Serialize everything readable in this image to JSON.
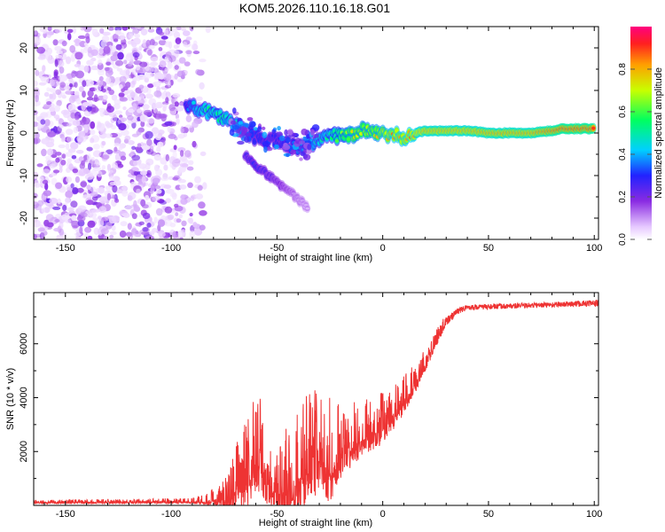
{
  "title": "KOM5.2026.110.16.18.G01",
  "chart_data": [
    {
      "type": "heatmap",
      "xlabel": "Height of straight line (km)",
      "ylabel": "Frequency (Hz)",
      "xlim": [
        -165,
        102
      ],
      "ylim": [
        -25,
        25
      ],
      "xticks": [
        -150,
        -100,
        -50,
        0,
        50,
        100
      ],
      "yticks": [
        -20,
        -10,
        0,
        10,
        20
      ],
      "xtick_labels": [
        "-150",
        "-100",
        "-50",
        "0",
        "50",
        "100"
      ],
      "ytick_labels": [
        "-20",
        "-10",
        "0",
        "10",
        "20"
      ],
      "colorbar": {
        "label": "Normalized spectral amplitude",
        "range": [
          0,
          1
        ],
        "ticks": [
          0.0,
          0.2,
          0.4,
          0.6,
          0.8
        ],
        "tick_labels": [
          "0.0",
          "0.2",
          "0.4",
          "0.6",
          "0.8"
        ]
      },
      "noise_region_x": [
        -165,
        -82
      ],
      "ridge": [
        {
          "x": -93,
          "f": 6.5,
          "a": 0.3
        },
        {
          "x": -88,
          "f": 6.0,
          "a": 0.45
        },
        {
          "x": -84,
          "f": 5.5,
          "a": 0.5
        },
        {
          "x": -80,
          "f": 4.5,
          "a": 0.5
        },
        {
          "x": -75,
          "f": 3.5,
          "a": 0.55
        },
        {
          "x": -70,
          "f": 2.0,
          "a": 0.45
        },
        {
          "x": -65,
          "f": 0.5,
          "a": 0.4
        },
        {
          "x": -60,
          "f": -1.0,
          "a": 0.3
        },
        {
          "x": -55,
          "f": -1.5,
          "a": 0.3
        },
        {
          "x": -50,
          "f": -2.0,
          "a": 0.3
        },
        {
          "x": -45,
          "f": -3.0,
          "a": 0.3
        },
        {
          "x": -40,
          "f": -3.5,
          "a": 0.35
        },
        {
          "x": -35,
          "f": -3.0,
          "a": 0.45
        },
        {
          "x": -30,
          "f": -1.5,
          "a": 0.45
        },
        {
          "x": -25,
          "f": -1.0,
          "a": 0.5
        },
        {
          "x": -20,
          "f": -0.5,
          "a": 0.6
        },
        {
          "x": -15,
          "f": -0.5,
          "a": 0.7
        },
        {
          "x": -10,
          "f": 0.5,
          "a": 0.7
        },
        {
          "x": -5,
          "f": 0.5,
          "a": 0.7
        },
        {
          "x": 0,
          "f": -0.5,
          "a": 0.75
        },
        {
          "x": 5,
          "f": -0.5,
          "a": 0.8
        },
        {
          "x": 10,
          "f": -1.0,
          "a": 0.8
        },
        {
          "x": 15,
          "f": 0.0,
          "a": 0.85
        },
        {
          "x": 20,
          "f": 0.5,
          "a": 0.9
        },
        {
          "x": 30,
          "f": 0.5,
          "a": 0.9
        },
        {
          "x": 40,
          "f": 0.5,
          "a": 0.9
        },
        {
          "x": 50,
          "f": 0.0,
          "a": 0.92
        },
        {
          "x": 60,
          "f": 0.0,
          "a": 0.92
        },
        {
          "x": 70,
          "f": 0.0,
          "a": 0.92
        },
        {
          "x": 75,
          "f": 0.3,
          "a": 0.95
        },
        {
          "x": 80,
          "f": 0.5,
          "a": 0.97
        },
        {
          "x": 85,
          "f": 1.0,
          "a": 1.0
        },
        {
          "x": 90,
          "f": 1.0,
          "a": 1.0
        },
        {
          "x": 95,
          "f": 1.0,
          "a": 1.0
        },
        {
          "x": 100,
          "f": 1.0,
          "a": 1.0
        }
      ],
      "branch": [
        {
          "x": -65,
          "f": -5.0,
          "a": 0.25
        },
        {
          "x": -60,
          "f": -7.5,
          "a": 0.3
        },
        {
          "x": -55,
          "f": -9.5,
          "a": 0.25
        },
        {
          "x": -50,
          "f": -11.5,
          "a": 0.2
        },
        {
          "x": -45,
          "f": -13.5,
          "a": 0.15
        },
        {
          "x": -40,
          "f": -15.5,
          "a": 0.1
        },
        {
          "x": -35,
          "f": -18.0,
          "a": 0.08
        }
      ]
    },
    {
      "type": "line",
      "xlabel": "Height of straight line (km)",
      "ylabel": "SNR (10 * v/v)",
      "xlim": [
        -165,
        102
      ],
      "ylim": [
        0,
        7900
      ],
      "xticks": [
        -150,
        -100,
        -50,
        0,
        50,
        100
      ],
      "yticks": [
        2000,
        4000,
        6000
      ],
      "xtick_labels": [
        "-150",
        "-100",
        "-50",
        "0",
        "50",
        "100"
      ],
      "ytick_labels": [
        "2000",
        "4000",
        "6000"
      ],
      "color": "#ee3333",
      "envelope": {
        "x": [
          -165,
          -90,
          -80,
          -70,
          -62,
          -58,
          -55,
          -50,
          -45,
          -40,
          -35,
          -30,
          -25,
          -20,
          -15,
          -10,
          -5,
          0,
          5,
          10,
          15,
          20,
          25,
          30,
          35,
          40,
          60,
          80,
          100
        ],
        "base": [
          100,
          120,
          150,
          300,
          1000,
          1400,
          600,
          300,
          400,
          800,
          1200,
          1500,
          1200,
          1700,
          2000,
          2400,
          2600,
          2800,
          3200,
          3800,
          4400,
          5200,
          6000,
          6800,
          7200,
          7350,
          7400,
          7450,
          7500
        ],
        "spike": [
          100,
          150,
          500,
          1800,
          3000,
          2600,
          1500,
          1600,
          2800,
          3500,
          3200,
          2800,
          3200,
          2000,
          1800,
          1600,
          1600,
          1500,
          1300,
          1100,
          900,
          700,
          500,
          350,
          250,
          200,
          200,
          200,
          250
        ]
      }
    }
  ]
}
